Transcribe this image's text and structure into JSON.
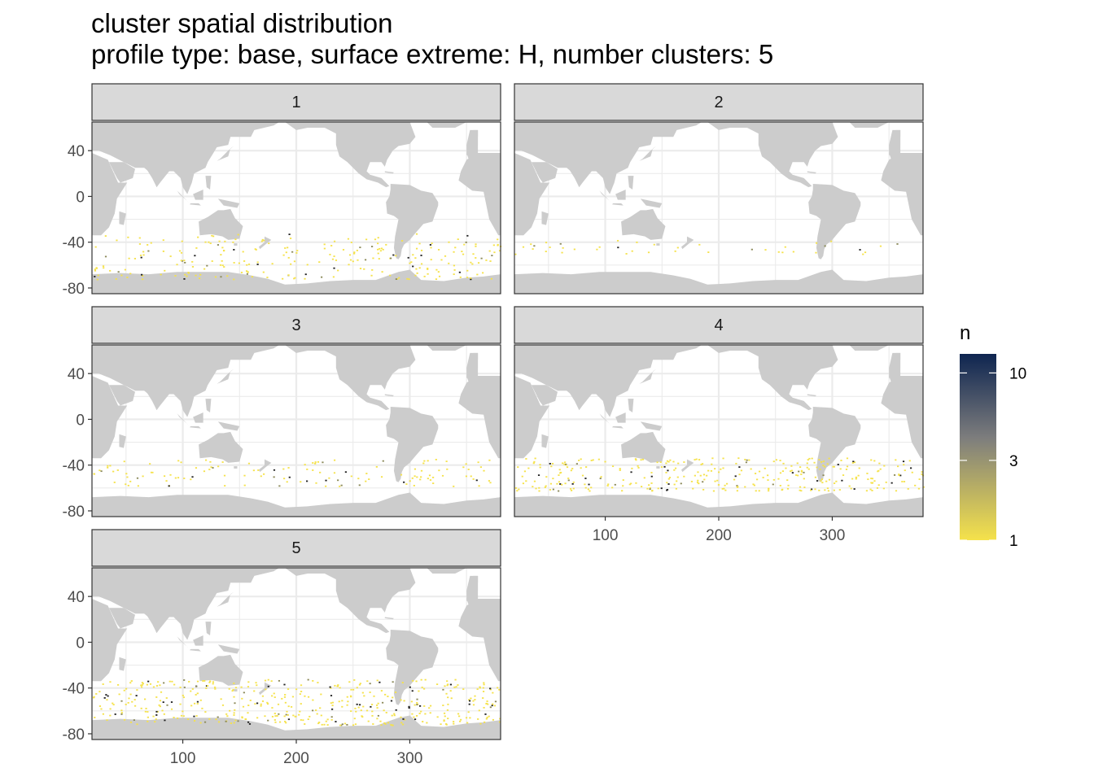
{
  "title": "cluster spatial distribution",
  "subtitle": "profile type: base, surface extreme: H, number clusters: 5",
  "colors": {
    "land": "#cccccc",
    "strip_fill": "#d9d9d9",
    "panel_border": "#333333",
    "grid": "#ebebeb",
    "legend_low": "#f5e24b",
    "legend_mid": "#7d7d7d",
    "legend_high": "#0e2550"
  },
  "chart_data": {
    "type": "heatmap",
    "facet_variable": "cluster",
    "facets": [
      "1",
      "2",
      "3",
      "4",
      "5"
    ],
    "x_ticks": [
      100,
      200,
      300
    ],
    "y_ticks": [
      40,
      0,
      -40,
      -80
    ],
    "xlim": [
      20,
      380
    ],
    "ylim": [
      -85,
      65
    ],
    "grid": true,
    "legend": {
      "title": "n",
      "placement": "right",
      "scale": "log",
      "ticks": [
        10,
        3,
        1
      ],
      "range": [
        1,
        13
      ]
    },
    "point_band": {
      "1": {
        "lat_range": [
          -72,
          -32
        ],
        "lon_range": [
          20,
          380
        ],
        "density": 260
      },
      "2": {
        "lat_range": [
          -50,
          -38
        ],
        "lon_range": [
          20,
          380
        ],
        "density": 40
      },
      "3": {
        "lat_range": [
          -58,
          -34
        ],
        "lon_range": [
          20,
          380
        ],
        "density": 130
      },
      "4": {
        "lat_range": [
          -62,
          -33
        ],
        "lon_range": [
          20,
          380
        ],
        "density": 340
      },
      "5": {
        "lat_range": [
          -72,
          -32
        ],
        "lon_range": [
          20,
          380
        ],
        "density": 460
      }
    }
  }
}
